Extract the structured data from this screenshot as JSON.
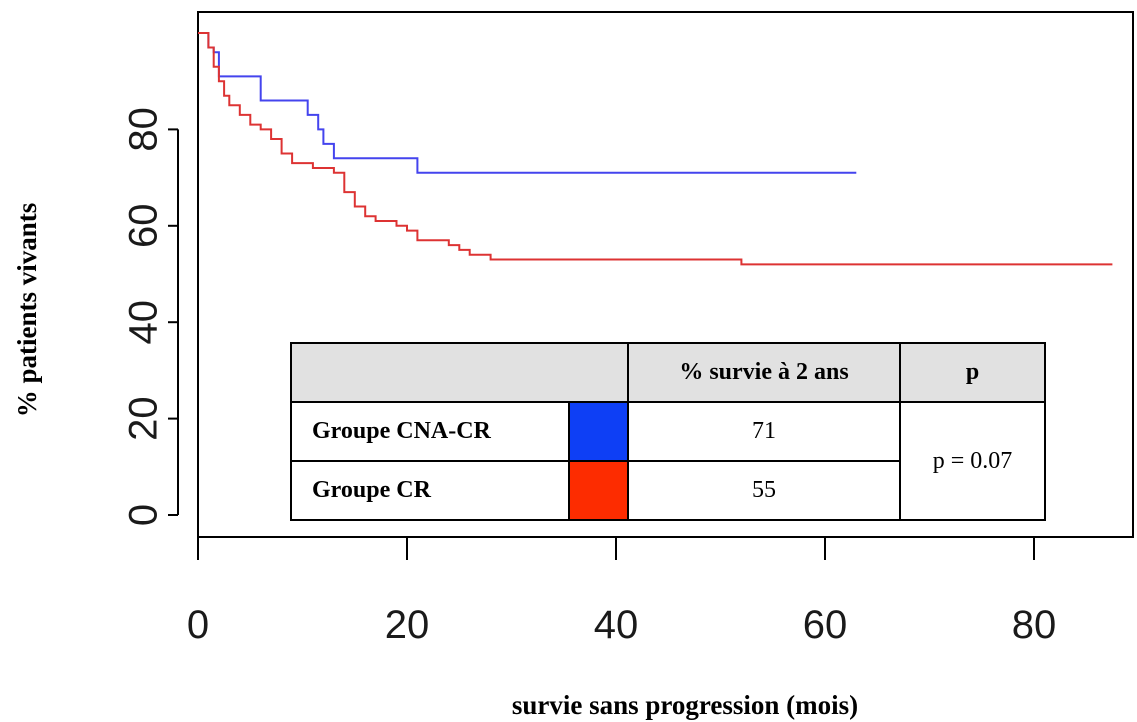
{
  "chart_data": {
    "type": "line",
    "step": true,
    "xlabel": "survie sans progression (mois)",
    "ylabel": "% patients vivants",
    "xlim": [
      0,
      88
    ],
    "ylim": [
      0,
      100
    ],
    "x_ticks": [
      "0",
      "20",
      "40",
      "60",
      "80"
    ],
    "y_ticks": [
      "0",
      "20",
      "40",
      "60",
      "80"
    ],
    "series": [
      {
        "name": "Groupe CNA-CR",
        "color": "#4444ee",
        "points": [
          [
            0,
            100
          ],
          [
            1,
            97
          ],
          [
            1.5,
            96
          ],
          [
            2,
            91
          ],
          [
            6,
            86
          ],
          [
            10.5,
            83
          ],
          [
            11.5,
            80
          ],
          [
            12,
            77
          ],
          [
            13,
            74
          ],
          [
            21,
            71
          ],
          [
            63,
            71
          ]
        ]
      },
      {
        "name": "Groupe CR",
        "color": "#dd3333",
        "points": [
          [
            0,
            100
          ],
          [
            1,
            97
          ],
          [
            1.5,
            93
          ],
          [
            2,
            90
          ],
          [
            2.5,
            87
          ],
          [
            3,
            85
          ],
          [
            4,
            83
          ],
          [
            5,
            81
          ],
          [
            6,
            80
          ],
          [
            7,
            78
          ],
          [
            8,
            75
          ],
          [
            9,
            73
          ],
          [
            11,
            72
          ],
          [
            13,
            71
          ],
          [
            14,
            67
          ],
          [
            15,
            64
          ],
          [
            16,
            62
          ],
          [
            17,
            61
          ],
          [
            19,
            60
          ],
          [
            20,
            59
          ],
          [
            21,
            57
          ],
          [
            24,
            56
          ],
          [
            25,
            55
          ],
          [
            26,
            54
          ],
          [
            28,
            53
          ],
          [
            52,
            52
          ],
          [
            87.5,
            52
          ]
        ]
      }
    ],
    "table": {
      "headers": [
        "",
        "% survie  à 2 ans",
        "p"
      ],
      "rows": [
        {
          "group": "Groupe CNA-CR",
          "color": "#0e3ff5",
          "value": "71"
        },
        {
          "group": "Groupe CR",
          "color": "#fd2c00",
          "value": "55"
        }
      ],
      "p_value": "p = 0.07"
    }
  }
}
